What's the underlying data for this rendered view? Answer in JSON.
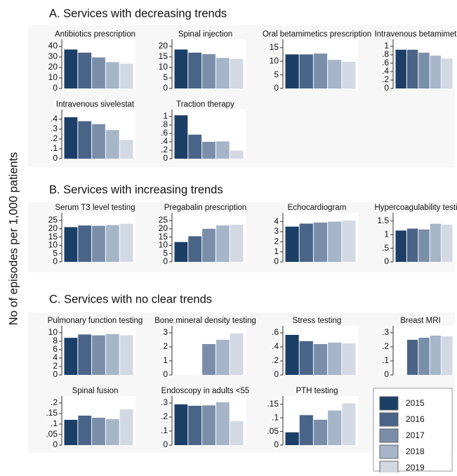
{
  "sections": [
    "A. Services with decreasing trends",
    "B. Services with increasing trends",
    "C. Services with no clear trends"
  ],
  "y_label": "No of episodes per 1,000 patients",
  "legend": {
    "labels": [
      "2015",
      "2016",
      "2017",
      "2018",
      "2019"
    ],
    "colors": [
      "#1b3f66",
      "#4a6487",
      "#7b8ea9",
      "#a6b5c8",
      "#d3d9e3"
    ]
  },
  "chart_data": [
    {
      "type": "bar",
      "title": "Antibiotics prescription",
      "values": [
        37,
        34,
        29.5,
        25,
        23.5
      ],
      "ylim": [
        0,
        44
      ],
      "yticks": [
        0,
        10,
        20,
        30,
        40
      ]
    },
    {
      "type": "bar",
      "title": "Spinal injection",
      "values": [
        18.5,
        17,
        16.3,
        14.5,
        14
      ],
      "ylim": [
        0,
        22
      ],
      "yticks": [
        0,
        5,
        10,
        15,
        20
      ]
    },
    {
      "type": "bar",
      "title": "Oral betamimetics prescription",
      "values": [
        12.5,
        12.5,
        12.8,
        10.5,
        9.8
      ],
      "ylim": [
        0,
        17
      ],
      "yticks": [
        0,
        5,
        10,
        15
      ]
    },
    {
      "type": "bar",
      "title": "Intravenous betamimetics",
      "values": [
        0.92,
        0.92,
        0.85,
        0.78,
        0.71
      ],
      "ylim": [
        0,
        1.1
      ],
      "yticks": [
        0,
        {
          "value": 0.2,
          "label": ".2"
        },
        {
          "value": 0.4,
          "label": ".4"
        },
        {
          "value": 0.6,
          "label": ".6"
        },
        {
          "value": 0.8,
          "label": ".8"
        },
        1
      ]
    },
    {
      "type": "bar",
      "title": "Intravenous sivelestat",
      "values": [
        0.42,
        0.38,
        0.35,
        0.29,
        0.19
      ],
      "ylim": [
        0,
        0.47
      ],
      "yticks": [
        0,
        {
          "value": 0.1,
          "label": ".1"
        },
        {
          "value": 0.2,
          "label": ".2"
        },
        {
          "value": 0.3,
          "label": ".3"
        },
        {
          "value": 0.4,
          "label": ".4"
        }
      ]
    },
    {
      "type": "bar",
      "title": "Traction therapy",
      "values": [
        1.03,
        0.57,
        0.4,
        0.41,
        0.19
      ],
      "ylim": [
        0,
        1.1
      ],
      "yticks": [
        0,
        {
          "value": 0.2,
          "label": ".2"
        },
        {
          "value": 0.4,
          "label": ".4"
        },
        {
          "value": 0.6,
          "label": ".6"
        },
        {
          "value": 0.8,
          "label": ".8"
        },
        1
      ]
    },
    {
      "type": "bar",
      "title": "Serum T3 level testing",
      "values": [
        21,
        22,
        21.8,
        22.2,
        23
      ],
      "ylim": [
        0,
        28
      ],
      "yticks": [
        0,
        5,
        10,
        15,
        20,
        25
      ]
    },
    {
      "type": "bar",
      "title": "Pregabalin prescription",
      "values": [
        12,
        15.5,
        20,
        22,
        22.5
      ],
      "ylim": [
        0,
        28
      ],
      "yticks": [
        0,
        5,
        10,
        15,
        20,
        25
      ]
    },
    {
      "type": "bar",
      "title": "Echocardiogram",
      "values": [
        3.5,
        3.8,
        3.9,
        4.0,
        4.1
      ],
      "ylim": [
        0,
        4.6
      ],
      "yticks": [
        0,
        1,
        2,
        3,
        4
      ]
    },
    {
      "type": "bar",
      "title": "Hypercoagulability testing",
      "values": [
        1.15,
        1.22,
        1.19,
        1.4,
        1.37
      ],
      "ylim": [
        0,
        1.7
      ],
      "yticks": [
        0,
        {
          "value": 0.5,
          "label": ".5"
        },
        1,
        1.5
      ]
    },
    {
      "type": "bar",
      "title": "Pulmonary function testing",
      "values": [
        8.8,
        9.6,
        9.4,
        9.7,
        9.4
      ],
      "ylim": [
        0,
        11
      ],
      "yticks": [
        0,
        2,
        4,
        6,
        8,
        10
      ]
    },
    {
      "type": "bar",
      "title": "Bone mineral density testing",
      "values": [
        null,
        null,
        2.2,
        2.5,
        2.95
      ],
      "ylim": [
        0,
        3.3
      ],
      "yticks": [
        0,
        1,
        2,
        3
      ]
    },
    {
      "type": "bar",
      "title": "Stress testing",
      "values": [
        0.57,
        0.48,
        0.44,
        0.46,
        0.45
      ],
      "ylim": [
        0,
        0.66
      ],
      "yticks": [
        0,
        {
          "value": 0.2,
          "label": ".2"
        },
        {
          "value": 0.4,
          "label": ".4"
        },
        {
          "value": 0.6,
          "label": ".6"
        }
      ]
    },
    {
      "type": "bar",
      "title": "Breast MRI",
      "values": [
        null,
        0.25,
        0.265,
        0.28,
        0.275
      ],
      "ylim": [
        0,
        0.33
      ],
      "yticks": [
        0,
        {
          "value": 0.1,
          "label": ".1"
        },
        {
          "value": 0.2,
          "label": ".2"
        },
        {
          "value": 0.3,
          "label": ".3"
        }
      ]
    },
    {
      "type": "bar",
      "title": "Spinal fusion",
      "values": [
        0.12,
        0.14,
        0.13,
        0.123,
        0.17
      ],
      "ylim": [
        0,
        0.22
      ],
      "yticks": [
        0,
        {
          "value": 0.05,
          "label": ".05"
        },
        {
          "value": 0.1,
          "label": ".1"
        },
        {
          "value": 0.15,
          "label": ".15"
        },
        {
          "value": 0.2,
          "label": ".2"
        }
      ]
    },
    {
      "type": "bar",
      "title": "Endoscopy in adults <55",
      "values": [
        0.29,
        0.28,
        0.283,
        0.305,
        0.17
      ],
      "ylim": [
        0,
        0.33
      ],
      "yticks": [
        0,
        {
          "value": 0.1,
          "label": ".1"
        },
        {
          "value": 0.2,
          "label": ".2"
        },
        {
          "value": 0.3,
          "label": ".3"
        }
      ]
    },
    {
      "type": "bar",
      "title": "PTH testing",
      "values": [
        0.047,
        0.11,
        0.093,
        0.127,
        0.153
      ],
      "ylim": [
        0,
        0.17
      ],
      "yticks": [
        0,
        {
          "value": 0.05,
          "label": ".05"
        },
        {
          "value": 0.1,
          "label": ".1"
        },
        {
          "value": 0.15,
          "label": ".15"
        }
      ]
    }
  ]
}
